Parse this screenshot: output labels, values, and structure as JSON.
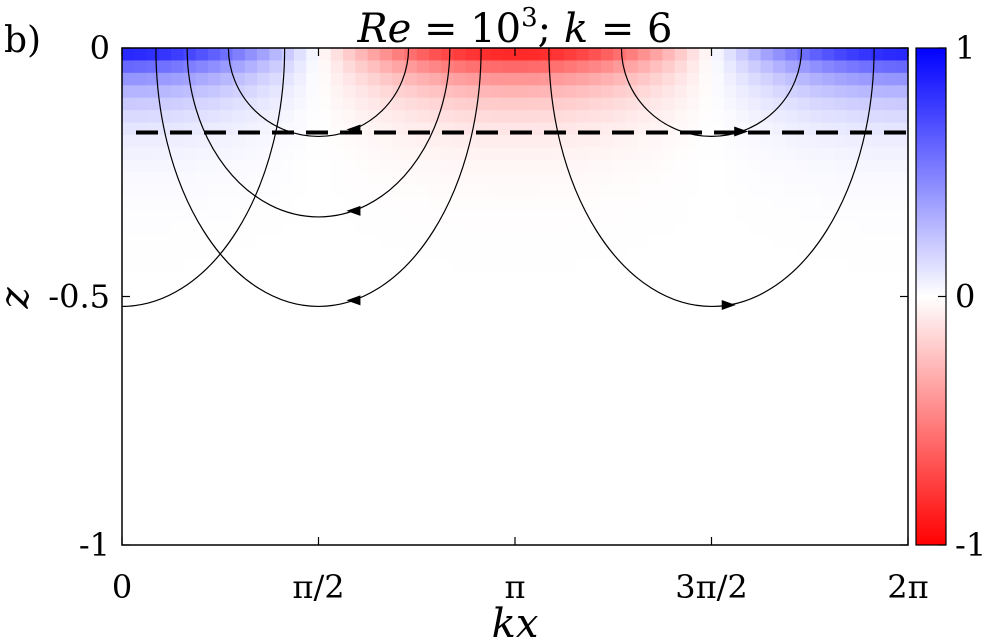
{
  "panel_label": "b)",
  "chart_data": {
    "type": "heatmap",
    "title": "Re = 10^3; k = 6",
    "title_parts": {
      "lhs1": "Re",
      "eq1": " = 10",
      "sup": "3",
      "mid": "; ",
      "lhs2": "k",
      "eq2": " = 6"
    },
    "xlabel": "kx",
    "ylabel": "z",
    "xlim": [
      0,
      6.2832
    ],
    "ylim": [
      -1,
      0
    ],
    "x_ticks": [
      {
        "value": 0,
        "label": "0"
      },
      {
        "value": 1.5708,
        "label": "π/2"
      },
      {
        "value": 3.1416,
        "label": "π"
      },
      {
        "value": 4.7124,
        "label": "3π/2"
      },
      {
        "value": 6.2832,
        "label": "2π"
      }
    ],
    "y_ticks": [
      {
        "value": 0,
        "label": "0"
      },
      {
        "value": -0.5,
        "label": "-0.5"
      },
      {
        "value": -1,
        "label": "-1"
      }
    ],
    "colorbar": {
      "range": [
        -1,
        1
      ],
      "ticks": [
        {
          "value": 1,
          "label": "1"
        },
        {
          "value": 0,
          "label": "0"
        },
        {
          "value": -1,
          "label": "-1"
        }
      ],
      "colors": {
        "high": "#0000ff",
        "mid": "#ffffff",
        "low": "#ff0000"
      }
    },
    "field": {
      "form": "cos(kx) * exp(-decay * |z|)",
      "decay": 14
    },
    "reference_line": {
      "z": -0.17,
      "style": "dashed",
      "color": "#000000"
    },
    "streamlines": [
      {
        "name": "streamline-deep-left",
        "x_center": 1.5708,
        "half_width": 1.3,
        "depth": 0.52,
        "arrow_x": 1.85,
        "arrow_dir": "left",
        "cut_at_edge": false
      },
      {
        "name": "streamline-deep-right",
        "x_center": 4.7124,
        "half_width": 1.3,
        "depth": 0.52,
        "arrow_x": 4.85,
        "arrow_dir": "right",
        "cut_at_edge": false
      },
      {
        "name": "streamline-mid-left",
        "x_center": 1.5708,
        "half_width": 1.05,
        "depth": 0.34,
        "arrow_x": 1.85,
        "arrow_dir": "left",
        "cut_at_edge": false
      },
      {
        "name": "streamline-top-left",
        "x_center": 1.5708,
        "half_width": 0.72,
        "depth": 0.178,
        "arrow_x": 1.85,
        "arrow_dir": "left",
        "cut_at_edge": false
      },
      {
        "name": "streamline-top-right",
        "x_center": 4.7124,
        "half_width": 0.72,
        "depth": 0.178,
        "arrow_x": 4.95,
        "arrow_dir": "right",
        "cut_at_edge": false
      },
      {
        "name": "streamline-edge-left",
        "x_center": 0.0,
        "half_width": 1.3,
        "depth": 0.52,
        "arrow_x": null,
        "arrow_dir": null,
        "cut_at_edge": true
      }
    ]
  }
}
